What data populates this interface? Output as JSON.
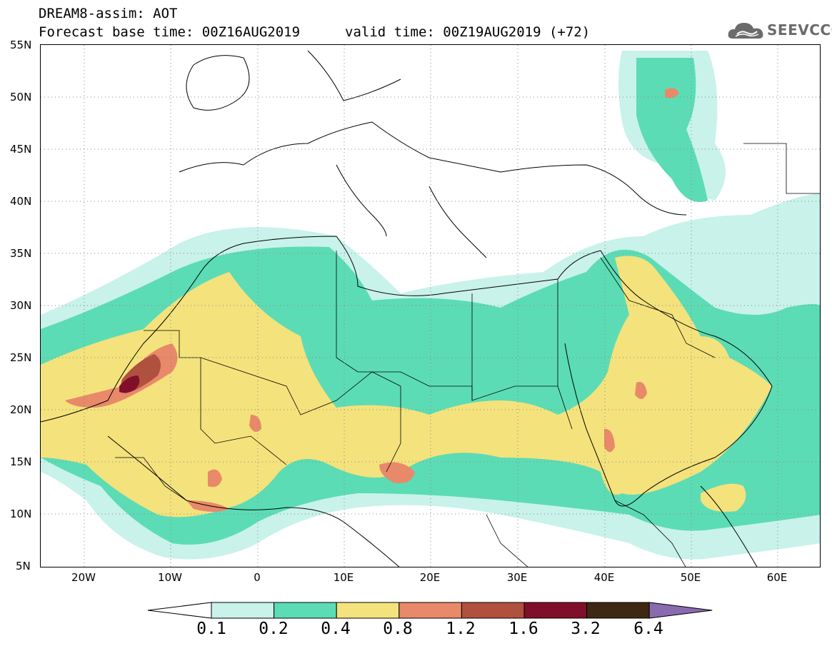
{
  "header": {
    "title": "DREAM8-assim: AOT",
    "base_time": "Forecast base time: 00Z16AUG2019",
    "valid_time": "valid time: 00Z19AUG2019 (+72)"
  },
  "logo": {
    "text": "SEEVCCC",
    "icon": "cloud-icon"
  },
  "axes": {
    "lat_labels": [
      "55N",
      "50N",
      "45N",
      "40N",
      "35N",
      "30N",
      "25N",
      "20N",
      "15N",
      "10N",
      "5N"
    ],
    "lon_labels": [
      "20W",
      "10W",
      "0",
      "10E",
      "20E",
      "30E",
      "40E",
      "50E",
      "60E"
    ]
  },
  "colorbar": {
    "labels": [
      "0.1",
      "0.2",
      "0.4",
      "0.8",
      "1.2",
      "1.6",
      "3.2",
      "6.4"
    ],
    "colors": [
      "#ffffff",
      "#c8f2ea",
      "#5cdcb4",
      "#f4e27c",
      "#e8896a",
      "#b0503e",
      "#80102a",
      "#3e2814",
      "#8a6bb0"
    ]
  },
  "map": {
    "colors": {
      "c1": "#c8f2ea",
      "c2": "#5cdcb4",
      "c3": "#f4e27c",
      "c4": "#e8896a",
      "c5": "#b0503e",
      "c6": "#80102a",
      "border": "#000000"
    }
  }
}
